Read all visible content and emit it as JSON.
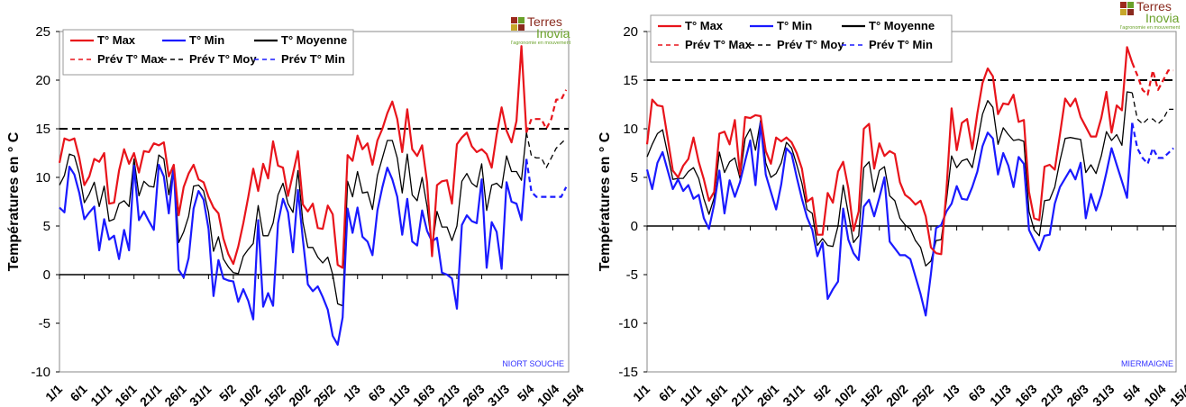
{
  "chart_data": [
    {
      "type": "line",
      "station": "NIORT SOUCHE",
      "ylabel": "Températures en ° C",
      "ylim": [
        -10,
        25
      ],
      "yticks": [
        -10,
        -5,
        0,
        5,
        10,
        15,
        20,
        25
      ],
      "threshold": 15,
      "x_tick_labels": [
        "1/1",
        "6/1",
        "11/1",
        "16/1",
        "21/1",
        "26/1",
        "31/1",
        "5/2",
        "10/2",
        "15/2",
        "20/2",
        "25/2",
        "1/3",
        "6/3",
        "11/3",
        "16/3",
        "21/3",
        "26/3",
        "31/3",
        "5/4",
        "10/4",
        "15/4"
      ],
      "x_start": "1/1",
      "forecast_start_index": 95,
      "legend": [
        "T° Max",
        "T° Min",
        "T° Moyenne",
        "Prév T° Max",
        "Prév T° Moy",
        "Prév T° Min"
      ],
      "series": [
        {
          "name": "T° Max",
          "color": "#e8141b",
          "values": [
            11.5,
            14,
            13.8,
            14,
            12,
            9.2,
            10.1,
            11.9,
            11.6,
            12.5,
            7.3,
            7.4,
            10.7,
            12.9,
            11.4,
            12.5,
            10.5,
            12.7,
            12.6,
            13.5,
            13.3,
            13.6,
            10.1,
            11.3,
            6.1,
            9,
            10.4,
            11.3,
            9.8,
            9.5,
            8,
            6.9,
            6.3,
            3.7,
            2.1,
            1.1,
            2.9,
            5.3,
            8,
            10.9,
            8.6,
            11.4,
            9.9,
            13.7,
            11.2,
            11,
            8.1,
            10.4,
            12.7,
            7.2,
            6.5,
            7.3,
            4.8,
            4.7,
            7.1,
            6.2,
            1,
            0.7,
            12.3,
            11.7,
            14.3,
            12.9,
            13.5,
            11.3,
            13.8,
            15,
            16.6,
            17.8,
            16,
            12.6,
            17,
            12.9,
            12.2,
            13.3,
            9.5,
            1.9,
            9.2,
            9.6,
            9.7,
            7.3,
            13.4,
            14.1,
            14.6,
            13.2,
            12.6,
            12.9,
            12.4,
            11,
            14.4,
            17.2,
            14.8,
            13.6,
            15.8,
            23.5,
            14.6
          ]
        },
        {
          "name": "T° Min",
          "color": "#1a1aff",
          "values": [
            6.9,
            6.4,
            11.1,
            10.3,
            8.4,
            5.7,
            6.4,
            7,
            2.5,
            5.7,
            3.6,
            4,
            1.6,
            4.6,
            2.5,
            11.2,
            5.6,
            6.5,
            5.5,
            4.6,
            11.3,
            10.1,
            6.3,
            11.2,
            0.5,
            -0.3,
            1.7,
            6.8,
            8.6,
            7.7,
            4.7,
            -2.2,
            1.5,
            -0.4,
            -0.6,
            -0.7,
            -2.8,
            -1.5,
            -2.7,
            -4.6,
            5.6,
            -3.3,
            -1.9,
            -3.2,
            5.3,
            7.8,
            6.4,
            2.3,
            8.7,
            3.6,
            -1,
            -1.7,
            -1.2,
            -2.3,
            -3.6,
            -6.3,
            -7.2,
            -4.4,
            6.8,
            4.3,
            6.9,
            3.9,
            3.4,
            2,
            6.6,
            9,
            11,
            9.8,
            8,
            4.1,
            7.8,
            3.4,
            3,
            6.6,
            4.5,
            3.4,
            3.8,
            0.2,
            0,
            -0.4,
            -3.5,
            5.1,
            6.1,
            5.5,
            5.3,
            9.8,
            0.7,
            5.4,
            4.4,
            0.6,
            9.5,
            7.5,
            7.3,
            5.6,
            11.9
          ]
        },
        {
          "name": "T° Moyenne",
          "color": "#000000",
          "values": [
            9.2,
            10.2,
            12.4,
            12.2,
            10.4,
            7.4,
            8.3,
            9.5,
            7,
            9.1,
            5.5,
            5.7,
            7.3,
            7.6,
            7,
            11.9,
            8.1,
            9.6,
            9.1,
            9,
            12.3,
            11.9,
            8.2,
            11.3,
            3.3,
            4.4,
            6,
            9.1,
            9.2,
            8.6,
            6.4,
            2.4,
            3.9,
            1.6,
            0.8,
            0.2,
            0.1,
            1.9,
            2.6,
            3.2,
            7.1,
            4,
            4,
            5.3,
            8.2,
            9.4,
            7.3,
            6.4,
            10.7,
            5.4,
            2.8,
            2.8,
            1.8,
            1.2,
            1.8,
            0,
            -3,
            -3.2,
            9.6,
            8,
            10.6,
            8.4,
            8.5,
            6.7,
            10.2,
            12,
            13.8,
            13.8,
            12,
            8.4,
            12.4,
            8.2,
            7.6,
            10,
            7,
            2.7,
            6.5,
            4.9,
            4.9,
            3.5,
            5,
            9.6,
            10.4,
            9.4,
            9,
            11.4,
            6.6,
            9.2,
            9.4,
            8.9,
            12.2,
            10.6,
            10.6,
            9.7,
            14.6
          ]
        },
        {
          "name": "Prév T° Max",
          "color": "#e8141b",
          "dashed": true,
          "values": [
            14.6,
            16,
            16,
            16,
            15,
            16,
            18,
            18,
            19
          ]
        },
        {
          "name": "Prév T° Moy",
          "color": "#000000",
          "dashed": true,
          "values": [
            14.6,
            12.2,
            12,
            12,
            11,
            12,
            13,
            13.5,
            14
          ]
        },
        {
          "name": "Prév T° Min",
          "color": "#1a1aff",
          "dashed": true,
          "values": [
            11.9,
            8.5,
            8,
            8,
            8,
            8,
            8,
            8,
            9
          ]
        }
      ]
    },
    {
      "type": "line",
      "station": "MIERMAIGNE",
      "ylabel": "Températures en ° C",
      "ylim": [
        -15,
        20
      ],
      "yticks": [
        -15,
        -10,
        -5,
        0,
        5,
        10,
        15,
        20
      ],
      "threshold": 15,
      "x_tick_labels": [
        "1/1",
        "6/1",
        "11/1",
        "16/1",
        "21/1",
        "26/1",
        "31/1",
        "5/2",
        "10/2",
        "15/2",
        "20/2",
        "25/2",
        "1/3",
        "6/3",
        "11/3",
        "16/3",
        "21/3",
        "26/3",
        "31/3",
        "5/4",
        "10/4",
        "15/4"
      ],
      "x_start": "1/1",
      "forecast_start_index": 95,
      "legend": [
        "T° Max",
        "T° Min",
        "T° Moyenne",
        "Prév T° Max",
        "Prév T° Moy",
        "Prév T° Min"
      ],
      "series": [
        {
          "name": "T° Max",
          "color": "#e8141b",
          "values": [
            8.4,
            13,
            12.4,
            12.3,
            9,
            5.7,
            5,
            6.2,
            6.9,
            9.1,
            6.6,
            4.8,
            2.6,
            3.5,
            9.5,
            9.7,
            8.4,
            10.9,
            5.3,
            11.2,
            11.1,
            11.4,
            11.3,
            7.7,
            6.4,
            9.1,
            8.7,
            9.1,
            8.6,
            7.5,
            5.9,
            2.5,
            2.9,
            -0.9,
            -0.9,
            3.4,
            2.4,
            5.6,
            6.6,
            3.9,
            -0.5,
            1.5,
            10,
            10.5,
            5.9,
            8.5,
            7.2,
            7.7,
            7.4,
            4.5,
            3.2,
            2.8,
            2.2,
            2.6,
            1,
            -2.2,
            -2.8,
            -2.9,
            3.7,
            12.1,
            7.8,
            10.6,
            11,
            7.9,
            11.6,
            14.7,
            16.2,
            15.4,
            11.5,
            12.6,
            12.5,
            13.5,
            10.7,
            10.9,
            3.5,
            0.8,
            0.6,
            6.1,
            6.3,
            5.8,
            9.4,
            13.1,
            12.3,
            13.1,
            11.2,
            10.2,
            9.2,
            9.2,
            11.1,
            13.8,
            9.6,
            12.4,
            11.9,
            18.4,
            16.8
          ]
        },
        {
          "name": "T° Min",
          "color": "#1a1aff",
          "values": [
            5.8,
            3.8,
            6.5,
            7.6,
            5.7,
            3.8,
            4.8,
            3.6,
            4.2,
            2.8,
            3.2,
            0.8,
            -0.3,
            2.2,
            5.7,
            1.3,
            4.7,
            3,
            4.5,
            6.7,
            8.8,
            4.2,
            10.6,
            5.3,
            3.5,
            1.7,
            4.3,
            8,
            7.4,
            5,
            2.8,
            0.9,
            -0.4,
            -3.1,
            -1.7,
            -7.5,
            -6.5,
            -5.7,
            1.8,
            -1.4,
            -2.8,
            -3.5,
            2,
            2.7,
            1,
            2.9,
            5,
            -1.6,
            -2.3,
            -3,
            -3,
            -3.4,
            -5.2,
            -7,
            -9.2,
            -4.9,
            -0.2,
            0.1,
            1.5,
            2.3,
            4.1,
            2.8,
            2.7,
            4,
            5.6,
            8.2,
            9.6,
            9,
            5.3,
            7.5,
            6.2,
            4,
            7.1,
            6.4,
            -0.4,
            -1.5,
            -2.5,
            -1,
            -0.9,
            2.3,
            4,
            4.9,
            5.8,
            4.8,
            6.5,
            0.8,
            3.3,
            1.6,
            3.2,
            5.5,
            8,
            6.3,
            4.6,
            2.9,
            10.6
          ]
        },
        {
          "name": "T° Moyenne",
          "color": "#000000",
          "values": [
            7.1,
            8.4,
            9.5,
            9.9,
            7.4,
            4.8,
            4.9,
            4.9,
            5.6,
            6,
            4.9,
            2.8,
            1.2,
            2.9,
            7.6,
            5.5,
            6.6,
            7,
            4.9,
            9,
            10,
            7.8,
            10.9,
            6.5,
            5,
            5.4,
            6.5,
            8.6,
            8,
            6.3,
            4.4,
            1.7,
            1.3,
            -2,
            -1.3,
            -2,
            -2.1,
            0,
            4.2,
            1.3,
            -1.7,
            -1,
            6,
            6.6,
            3.5,
            5.7,
            6.1,
            3.1,
            2.6,
            0.8,
            0.1,
            -0.3,
            -1.5,
            -2.2,
            -4.1,
            -3.6,
            -1.5,
            -1.4,
            2.6,
            7.2,
            6,
            6.7,
            6.9,
            6,
            8.6,
            11.5,
            12.9,
            12.2,
            8.4,
            10.1,
            9.4,
            8.8,
            8.9,
            8.7,
            1.5,
            -0.4,
            -1,
            2.6,
            2.7,
            4,
            6.7,
            9,
            9.1,
            9,
            8.9,
            5.5,
            6.3,
            5.4,
            7.2,
            9.7,
            8.8,
            9.4,
            8.3,
            13.8,
            13.7
          ]
        },
        {
          "name": "Prév T° Max",
          "color": "#e8141b",
          "dashed": true,
          "values": [
            16.8,
            15.5,
            14,
            13.5,
            16,
            14,
            15,
            16,
            16
          ]
        },
        {
          "name": "Prév T° Moy",
          "color": "#000000",
          "dashed": true,
          "values": [
            13.7,
            11,
            10.5,
            11,
            11,
            10.5,
            11,
            12,
            12
          ]
        },
        {
          "name": "Prév T° Min",
          "color": "#1a1aff",
          "dashed": true,
          "values": [
            10.6,
            8,
            7,
            6.4,
            8,
            7,
            7,
            7.5,
            8
          ]
        }
      ]
    }
  ],
  "logo": {
    "line1": "Terres",
    "line2": "Inovia",
    "tagline": "l'agronomie en mouvement"
  }
}
